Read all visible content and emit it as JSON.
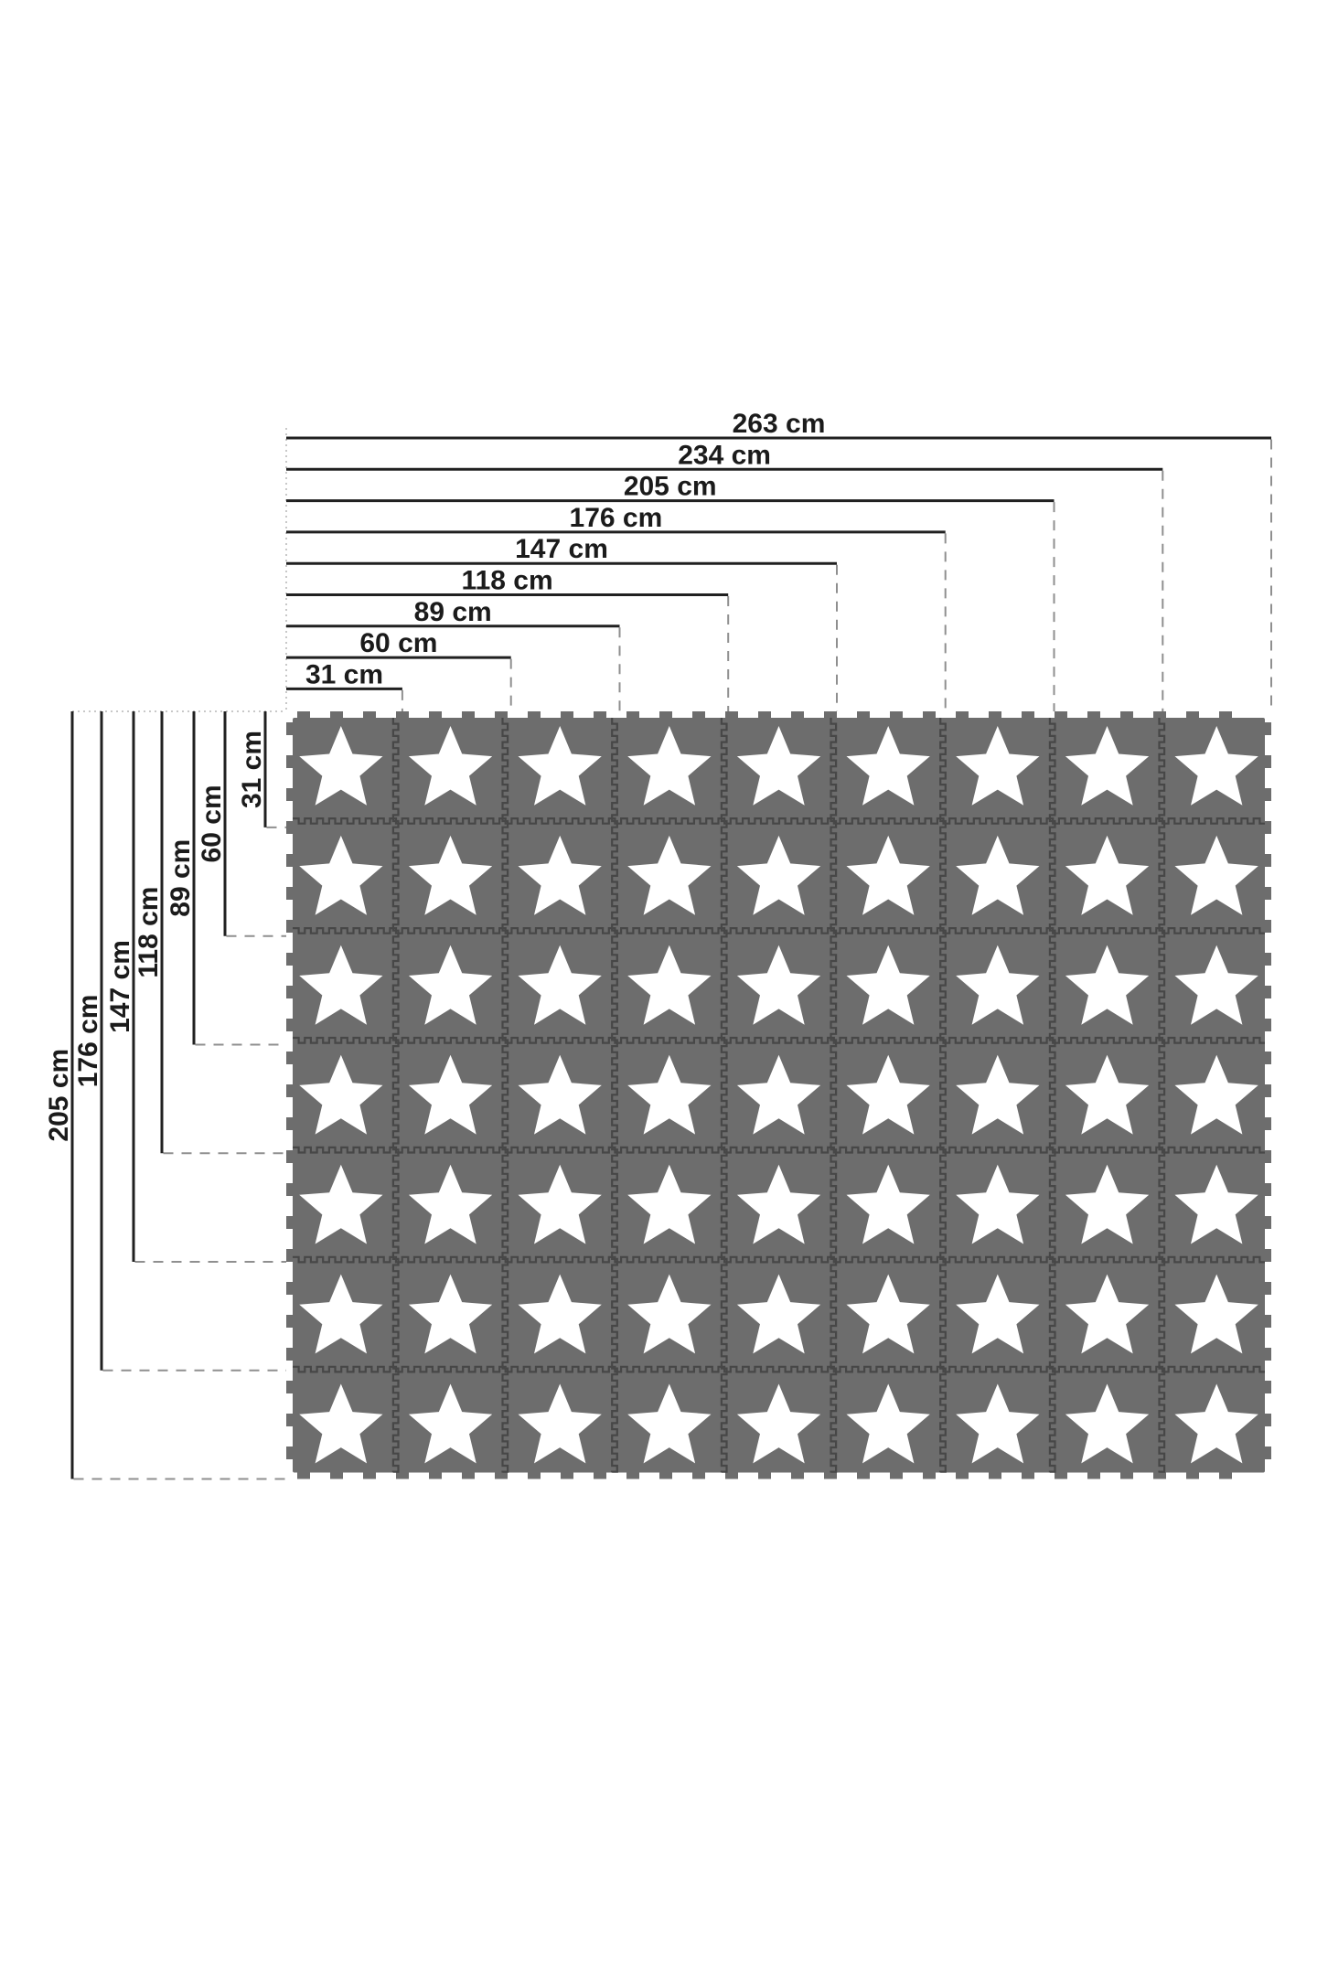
{
  "diagram": {
    "description": "Interlocking foam star play-mat size diagram",
    "unit": "cm",
    "top_dimensions": [
      {
        "label": "263 cm",
        "cm": 263
      },
      {
        "label": "234 cm",
        "cm": 234
      },
      {
        "label": "205 cm",
        "cm": 205
      },
      {
        "label": "176 cm",
        "cm": 176
      },
      {
        "label": "147 cm",
        "cm": 147
      },
      {
        "label": "118 cm",
        "cm": 118
      },
      {
        "label": "89 cm",
        "cm": 89
      },
      {
        "label": "60 cm",
        "cm": 60
      },
      {
        "label": "31 cm",
        "cm": 31
      }
    ],
    "left_dimensions": [
      {
        "label": "205 cm",
        "cm": 205
      },
      {
        "label": "176 cm",
        "cm": 176
      },
      {
        "label": "147 cm",
        "cm": 147
      },
      {
        "label": "118 cm",
        "cm": 118
      },
      {
        "label": "89 cm",
        "cm": 89
      },
      {
        "label": "60 cm",
        "cm": 60
      },
      {
        "label": "31 cm",
        "cm": 31
      }
    ],
    "mat": {
      "columns": 9,
      "rows": 7,
      "total_width_cm": 263,
      "total_height_cm": 205,
      "tile_pitch_cm": 29,
      "stars_total": 63,
      "star_icon": "five-point-star"
    },
    "colors": {
      "background": "#ffffff",
      "tile": "#6d6d6d",
      "seam": "#474747",
      "star": "#ffffff",
      "dimension_line": "#202020",
      "guide_dash": "#8f8f8f",
      "guide_dot": "#b5b5b5",
      "label_text": "#1b1b1b"
    }
  }
}
